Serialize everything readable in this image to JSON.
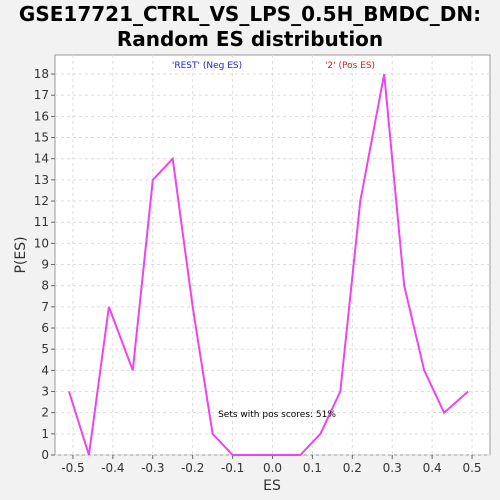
{
  "chart_data": {
    "type": "line",
    "title_line1": "GSE17721_CTRL_VS_LPS_0.5H_BMDC_DN:",
    "title_line2": "Random ES distribution",
    "xlabel": "ES",
    "ylabel": "P(ES)",
    "xlim": [
      -0.545,
      0.545
    ],
    "ylim": [
      0,
      18.9
    ],
    "xticks": [
      -0.5,
      -0.4,
      -0.3,
      -0.2,
      -0.1,
      0.0,
      0.1,
      0.2,
      0.3,
      0.4,
      0.5
    ],
    "xtick_labels": [
      "-0.5",
      "-0.4",
      "-0.3",
      "-0.2",
      "-0.1",
      "0.0",
      "0.1",
      "0.2",
      "0.3",
      "0.4",
      "0.5"
    ],
    "yticks": [
      0,
      1,
      2,
      3,
      4,
      5,
      6,
      7,
      8,
      9,
      10,
      11,
      12,
      13,
      14,
      15,
      16,
      17,
      18
    ],
    "grid": true,
    "legend": {
      "neg_label": "'REST' (Neg ES)",
      "pos_label": "'2' (Pos ES)",
      "neg_color": "#2222cc",
      "pos_color": "#cc2222"
    },
    "annotation": "Sets with pos scores: 51%",
    "series": [
      {
        "color": "#ee44ee",
        "x": [
          -0.51,
          -0.46,
          -0.41,
          -0.35,
          -0.3,
          -0.25,
          -0.2,
          -0.15,
          -0.1,
          -0.04,
          0.02,
          0.07,
          0.12,
          0.17,
          0.22,
          0.28,
          0.33,
          0.38,
          0.43,
          0.49
        ],
        "y": [
          3,
          0,
          7,
          4,
          13,
          14,
          7,
          1,
          0,
          0,
          0,
          0,
          1,
          3,
          12,
          18,
          8,
          4,
          2,
          3
        ]
      }
    ]
  }
}
